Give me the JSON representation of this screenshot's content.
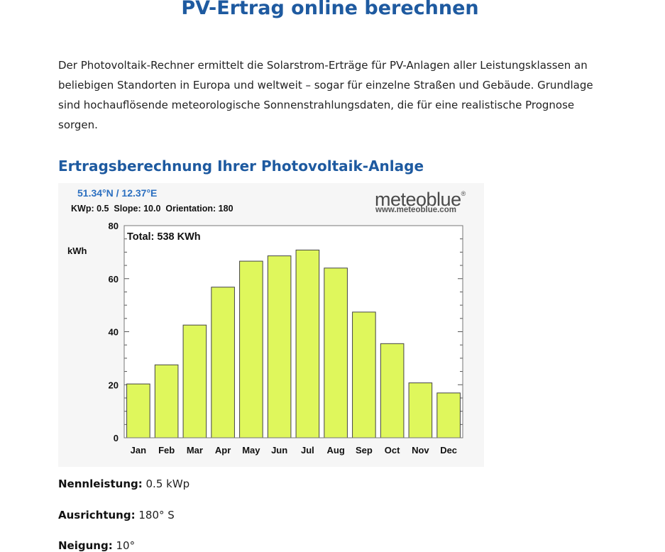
{
  "page": {
    "title": "PV-Ertrag online berechnen",
    "intro": "Der Photovoltaik-Rechner ermittelt die Solarstrom-Erträge für PV-Anlagen aller Leistungsklassen an beliebigen Standorten in Europa und weltweit – sogar für einzelne Straßen und Gebäude. Grundlage sind hochauflösende meteorologische Sonnenstrahlungsdaten, die für eine realistische Prognose sorgen.",
    "section_title": "Ertragsberechnung Ihrer Photovoltaik-Anlage"
  },
  "chart_header": {
    "coords": "51.34°N / 12.37°E",
    "params": "KWp: 0.5  Slope: 10.0  Orientation: 180",
    "logo": "meteoblue",
    "logo_mark": "®",
    "logo_url": "www.meteoblue.com"
  },
  "chart_data": {
    "type": "bar",
    "title": "Total: 538 KWh",
    "xlabel": "",
    "ylabel": "kWh",
    "categories": [
      "Jan",
      "Feb",
      "Mar",
      "Apr",
      "May",
      "Jun",
      "Jul",
      "Aug",
      "Sep",
      "Oct",
      "Nov",
      "Dec"
    ],
    "values": [
      20.3,
      27.5,
      42.5,
      56.8,
      66.6,
      68.6,
      70.8,
      64.0,
      47.4,
      35.5,
      20.7,
      16.9
    ],
    "ylim": [
      0,
      80
    ],
    "yticks": [
      0,
      20,
      40,
      60,
      80
    ],
    "bar_color": "#dff75c",
    "grid": false
  },
  "details": [
    {
      "label": "Nennleistung:",
      "value": "0.5 kWp"
    },
    {
      "label": "Ausrichtung:",
      "value": "180° S"
    },
    {
      "label": "Neigung:",
      "value": "10°"
    }
  ]
}
